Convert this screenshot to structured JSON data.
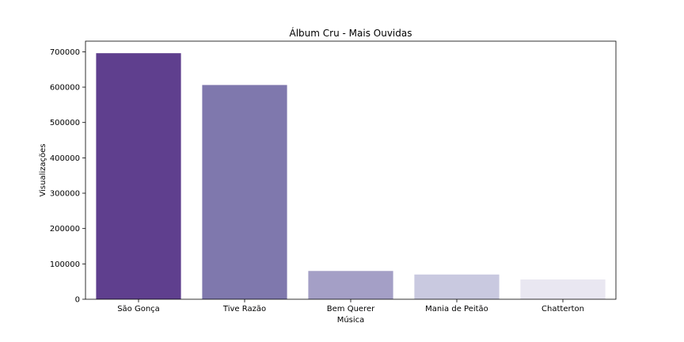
{
  "chart_data": {
    "type": "bar",
    "title": "Álbum Cru - Mais Ouvidas",
    "xlabel": "Música",
    "ylabel": "Visualizações",
    "categories": [
      "São Gonça",
      "Tive Razão",
      "Bem Querer",
      "Mania de Peitão",
      "Chatterton"
    ],
    "values": [
      696000,
      606000,
      80000,
      70000,
      56000
    ],
    "colors": [
      "#5f3f8e",
      "#7f78ad",
      "#a49fc6",
      "#c9c9e0",
      "#e9e7f1"
    ],
    "ylim": [
      0,
      730000
    ],
    "yticks": [
      0,
      100000,
      200000,
      300000,
      400000,
      500000,
      600000,
      700000
    ],
    "ytick_labels": [
      "0",
      "100000",
      "200000",
      "300000",
      "400000",
      "500000",
      "600000",
      "700000"
    ],
    "grid": false,
    "legend": "none"
  }
}
